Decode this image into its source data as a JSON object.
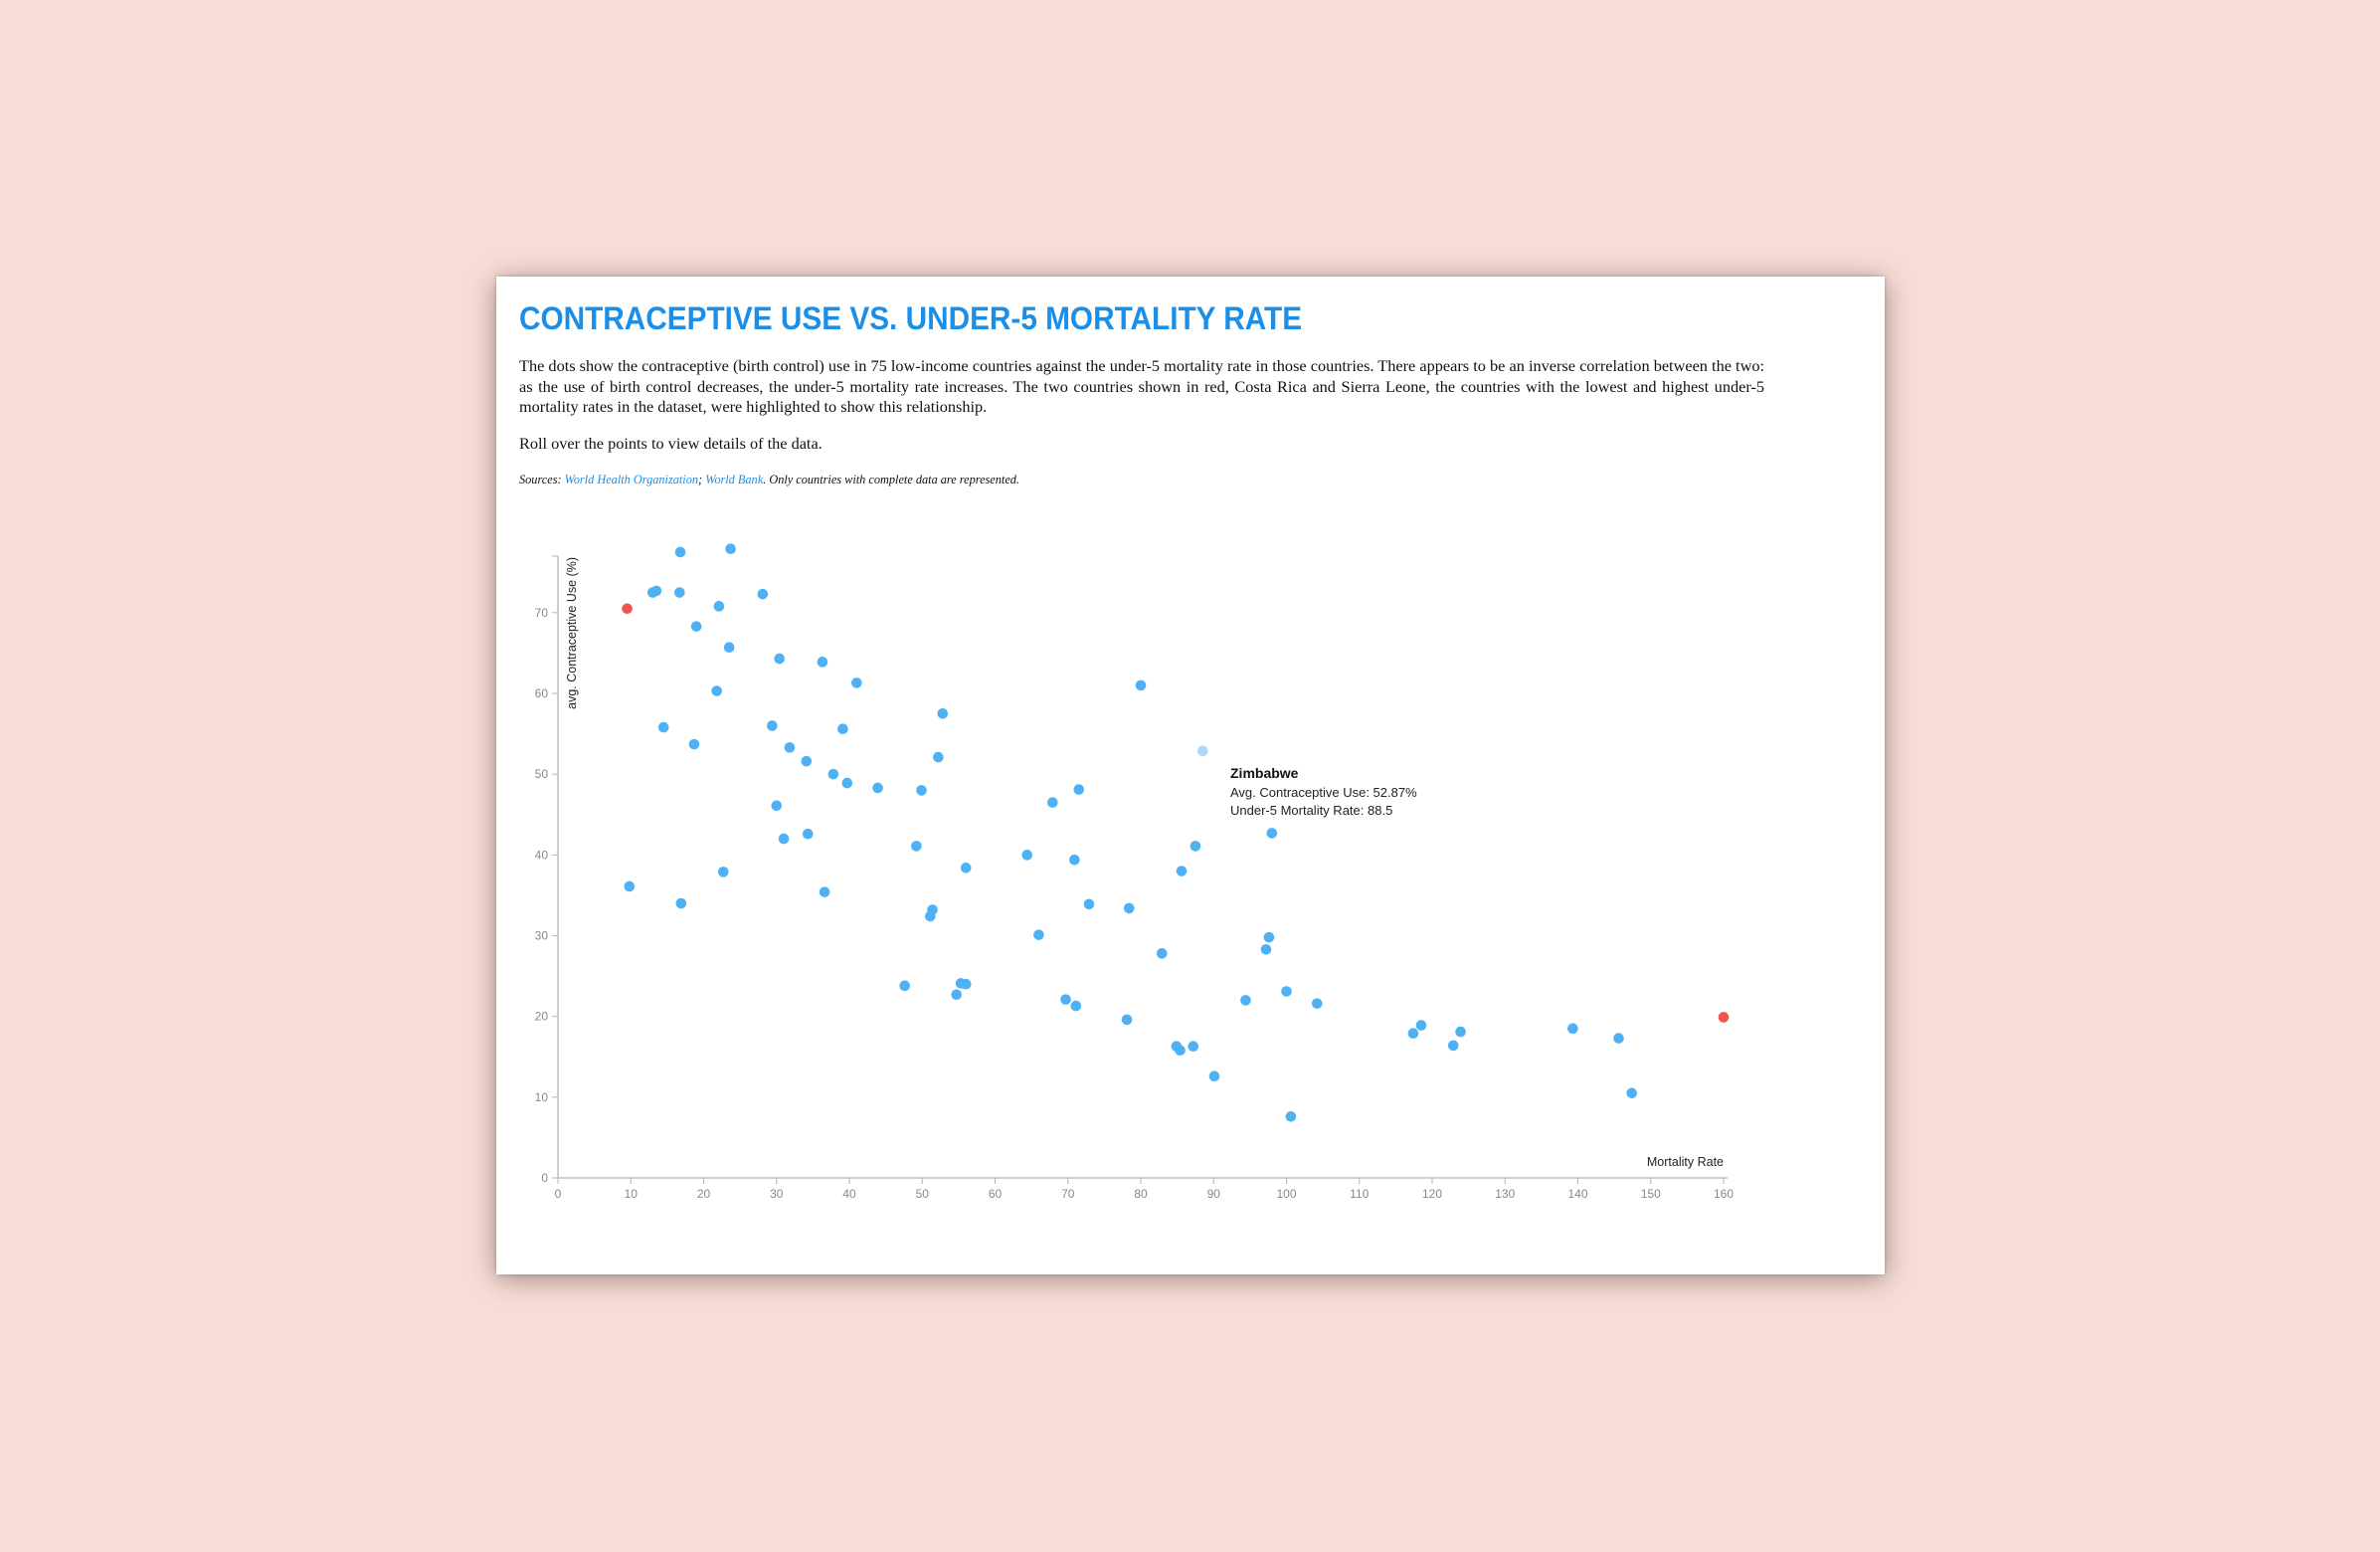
{
  "header": {
    "title": "CONTRACEPTIVE USE VS. UNDER-5 MORTALITY RATE",
    "description": "The dots show the contraceptive (birth control) use in 75 low-income countries against the under-5 mortality rate in those countries. There appears to be an inverse correlation between the two: as the use of birth control decreases, the under-5 mortality rate increases. The two countries shown in red, Costa Rica and Sierra Leone, the countries with the lowest and highest under-5 mortality rates in the dataset, were highlighted to show this relationship.",
    "instruction": "Roll over the points to view details of the data.",
    "sources_prefix": "Sources: ",
    "source_1": "World Health Organization",
    "source_sep": "; ",
    "source_2": "World Bank",
    "sources_suffix": ". Only countries with complete data are represented."
  },
  "tooltip": {
    "country": "Zimbabwe",
    "line1": "Avg. Contraceptive Use: 52.87%",
    "line2": "Under-5 Mortality Rate: 88.5"
  },
  "colors": {
    "point": "#4eb1f5",
    "highlight": "#ef5350",
    "hover": "#a9d8fa",
    "title": "#1b8fe8"
  },
  "chart_data": {
    "type": "scatter",
    "title": "CONTRACEPTIVE USE VS. UNDER-5 MORTALITY RATE",
    "xlabel": "Mortality Rate",
    "ylabel": "avg. Contraceptive Use (%)",
    "xlim": [
      0,
      160
    ],
    "ylim": [
      0,
      77
    ],
    "xticks": [
      0,
      10,
      20,
      30,
      40,
      50,
      60,
      70,
      80,
      90,
      100,
      110,
      120,
      130,
      140,
      150,
      160
    ],
    "yticks": [
      0,
      10,
      20,
      30,
      40,
      50,
      60,
      70
    ],
    "grid": false,
    "highlighted": [
      {
        "name": "Costa Rica",
        "x": 9.5,
        "y": 70.5
      },
      {
        "name": "Sierra Leone",
        "x": 160.0,
        "y": 19.9
      }
    ],
    "hovered": {
      "name": "Zimbabwe",
      "x": 88.5,
      "y": 52.87
    },
    "points": [
      {
        "x": 16.8,
        "y": 77.5
      },
      {
        "x": 23.7,
        "y": 77.9
      },
      {
        "x": 13.0,
        "y": 72.5
      },
      {
        "x": 13.5,
        "y": 72.7
      },
      {
        "x": 16.7,
        "y": 72.5
      },
      {
        "x": 28.1,
        "y": 72.3
      },
      {
        "x": 22.1,
        "y": 70.8
      },
      {
        "x": 19.0,
        "y": 68.3
      },
      {
        "x": 23.5,
        "y": 65.7
      },
      {
        "x": 30.4,
        "y": 64.3
      },
      {
        "x": 36.3,
        "y": 63.9
      },
      {
        "x": 41.0,
        "y": 61.3
      },
      {
        "x": 21.8,
        "y": 60.3
      },
      {
        "x": 80.0,
        "y": 61.0
      },
      {
        "x": 14.5,
        "y": 55.8
      },
      {
        "x": 29.4,
        "y": 56.0
      },
      {
        "x": 39.1,
        "y": 55.6
      },
      {
        "x": 52.8,
        "y": 57.5
      },
      {
        "x": 18.7,
        "y": 53.7
      },
      {
        "x": 31.8,
        "y": 53.3
      },
      {
        "x": 34.1,
        "y": 51.6
      },
      {
        "x": 52.2,
        "y": 52.1
      },
      {
        "x": 37.8,
        "y": 50.0
      },
      {
        "x": 39.7,
        "y": 48.9
      },
      {
        "x": 43.9,
        "y": 48.3
      },
      {
        "x": 49.9,
        "y": 48.0
      },
      {
        "x": 71.5,
        "y": 48.1
      },
      {
        "x": 67.9,
        "y": 46.5
      },
      {
        "x": 30.0,
        "y": 46.1
      },
      {
        "x": 34.3,
        "y": 42.6
      },
      {
        "x": 31.0,
        "y": 42.0
      },
      {
        "x": 98.0,
        "y": 42.7
      },
      {
        "x": 49.2,
        "y": 41.1
      },
      {
        "x": 87.5,
        "y": 41.1
      },
      {
        "x": 64.4,
        "y": 40.0
      },
      {
        "x": 70.9,
        "y": 39.4
      },
      {
        "x": 56.0,
        "y": 38.4
      },
      {
        "x": 22.7,
        "y": 37.9
      },
      {
        "x": 85.6,
        "y": 38.0
      },
      {
        "x": 9.8,
        "y": 36.1
      },
      {
        "x": 36.6,
        "y": 35.4
      },
      {
        "x": 16.9,
        "y": 34.0
      },
      {
        "x": 72.9,
        "y": 33.9
      },
      {
        "x": 78.4,
        "y": 33.4
      },
      {
        "x": 51.4,
        "y": 33.2
      },
      {
        "x": 51.1,
        "y": 32.4
      },
      {
        "x": 66.0,
        "y": 30.1
      },
      {
        "x": 97.6,
        "y": 29.8
      },
      {
        "x": 97.2,
        "y": 28.3
      },
      {
        "x": 82.9,
        "y": 27.8
      },
      {
        "x": 47.6,
        "y": 23.8
      },
      {
        "x": 55.3,
        "y": 24.1
      },
      {
        "x": 56.0,
        "y": 24.0
      },
      {
        "x": 54.7,
        "y": 22.7
      },
      {
        "x": 69.7,
        "y": 22.1
      },
      {
        "x": 71.1,
        "y": 21.3
      },
      {
        "x": 94.4,
        "y": 22.0
      },
      {
        "x": 100.0,
        "y": 23.1
      },
      {
        "x": 104.2,
        "y": 21.6
      },
      {
        "x": 78.1,
        "y": 19.6
      },
      {
        "x": 117.4,
        "y": 17.9
      },
      {
        "x": 118.5,
        "y": 18.9
      },
      {
        "x": 123.9,
        "y": 18.1
      },
      {
        "x": 139.3,
        "y": 18.5
      },
      {
        "x": 145.6,
        "y": 17.3
      },
      {
        "x": 122.9,
        "y": 16.4
      },
      {
        "x": 84.9,
        "y": 16.3
      },
      {
        "x": 87.2,
        "y": 16.3
      },
      {
        "x": 85.4,
        "y": 15.8
      },
      {
        "x": 90.1,
        "y": 12.6
      },
      {
        "x": 147.4,
        "y": 10.5
      },
      {
        "x": 100.6,
        "y": 7.6
      }
    ]
  }
}
